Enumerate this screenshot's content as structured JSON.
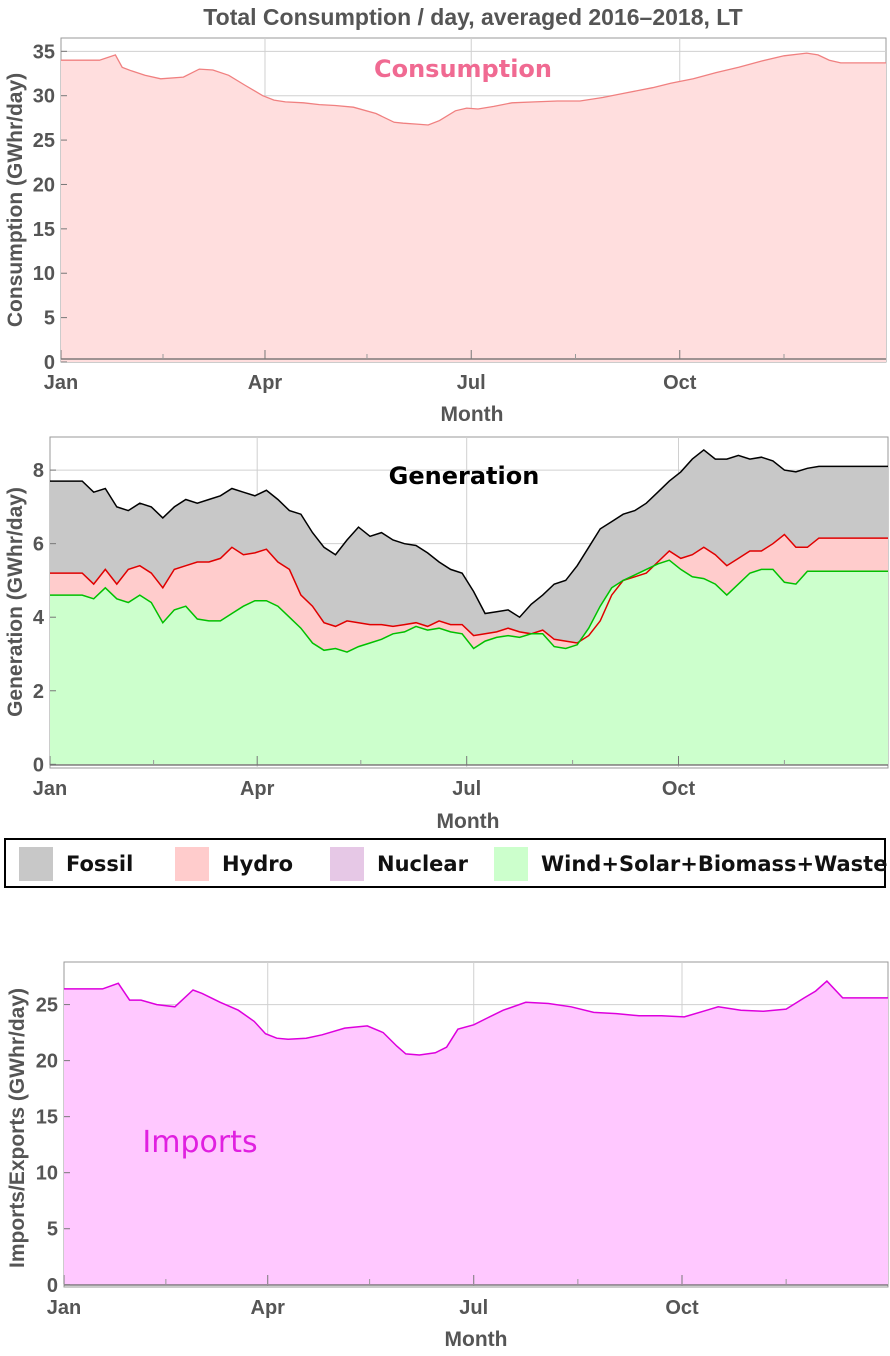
{
  "chart_data": [
    {
      "type": "area",
      "title": "Total Consumption / day, averaged 2016–2018, LT",
      "xlabel": "Month",
      "ylabel": "Consumption (GWhr/day)",
      "xticks": [
        "Jan",
        "Apr",
        "Jul",
        "Oct"
      ],
      "xlim": [
        1,
        365
      ],
      "ylim": [
        0,
        36.5
      ],
      "yticks": [
        0,
        5,
        10,
        15,
        20,
        25,
        30,
        35
      ],
      "grid": true,
      "annotation": "Consumption",
      "colors": {
        "line": "#f08080",
        "fill": "#ffdede",
        "annotation": "#f06a92"
      },
      "series": [
        {
          "values_x": [
            1,
            18,
            25,
            28,
            32,
            38,
            45,
            55,
            62,
            68,
            75,
            82,
            90,
            95,
            100,
            108,
            115,
            122,
            130,
            140,
            148,
            152,
            158,
            163,
            168,
            175,
            180,
            185,
            192,
            200,
            210,
            220,
            230,
            240,
            250,
            262,
            270,
            280,
            290,
            300,
            310,
            320,
            330,
            335,
            340,
            345,
            350,
            365
          ],
          "values_y": [
            34.0,
            34.0,
            34.6,
            33.2,
            32.8,
            32.3,
            31.9,
            32.1,
            33.0,
            32.9,
            32.3,
            31.2,
            30.0,
            29.5,
            29.3,
            29.2,
            29.0,
            28.9,
            28.7,
            28.0,
            27.0,
            26.9,
            26.8,
            26.7,
            27.2,
            28.3,
            28.6,
            28.5,
            28.8,
            29.2,
            29.3,
            29.4,
            29.4,
            29.8,
            30.3,
            30.9,
            31.4,
            31.9,
            32.6,
            33.2,
            33.9,
            34.5,
            34.8,
            34.6,
            34.0,
            33.7,
            33.7,
            33.7
          ]
        }
      ]
    },
    {
      "type": "area",
      "title": "Generation",
      "xlabel": "Month",
      "ylabel": "Generation (GWhr/day)",
      "xticks": [
        "Jan",
        "Apr",
        "Jul",
        "Oct"
      ],
      "xlim": [
        1,
        365
      ],
      "ylim": [
        -0.1,
        8.9
      ],
      "yticks": [
        0,
        2,
        4,
        6,
        8
      ],
      "grid": true,
      "stacked": true,
      "series": [
        {
          "name": "Fossil",
          "line": "#000000",
          "fill": "#c8c8c8",
          "values_x": [
            1,
            15,
            20,
            25,
            30,
            35,
            40,
            45,
            50,
            55,
            60,
            65,
            70,
            75,
            80,
            85,
            90,
            95,
            100,
            105,
            110,
            115,
            120,
            125,
            130,
            135,
            140,
            145,
            150,
            155,
            160,
            165,
            170,
            175,
            180,
            185,
            190,
            195,
            200,
            205,
            210,
            215,
            220,
            225,
            230,
            235,
            240,
            245,
            250,
            255,
            260,
            265,
            270,
            275,
            280,
            285,
            290,
            295,
            300,
            305,
            310,
            315,
            320,
            325,
            330,
            335,
            340,
            345,
            350,
            365
          ],
          "values_y": [
            7.7,
            7.7,
            7.4,
            7.5,
            7.0,
            6.9,
            7.1,
            7.0,
            6.7,
            7.0,
            7.2,
            7.1,
            7.2,
            7.3,
            7.5,
            7.4,
            7.3,
            7.45,
            7.2,
            6.9,
            6.8,
            6.3,
            5.9,
            5.7,
            6.1,
            6.45,
            6.2,
            6.3,
            6.1,
            6.0,
            5.95,
            5.75,
            5.5,
            5.3,
            5.2,
            4.7,
            4.1,
            4.15,
            4.2,
            4.0,
            4.35,
            4.6,
            4.9,
            5.0,
            5.4,
            5.9,
            6.4,
            6.6,
            6.8,
            6.9,
            7.1,
            7.4,
            7.7,
            7.95,
            8.3,
            8.55,
            8.3,
            8.3,
            8.4,
            8.3,
            8.35,
            8.25,
            8.0,
            7.95,
            8.05,
            8.1,
            8.1,
            8.1,
            8.1,
            8.1
          ]
        },
        {
          "name": "Hydro",
          "line": "#e00000",
          "fill": "#ffcccc",
          "values_x": [
            1,
            15,
            20,
            25,
            30,
            35,
            40,
            45,
            50,
            55,
            60,
            65,
            70,
            75,
            80,
            85,
            90,
            95,
            100,
            105,
            110,
            115,
            120,
            125,
            130,
            135,
            140,
            145,
            150,
            155,
            160,
            165,
            170,
            175,
            180,
            185,
            190,
            195,
            200,
            205,
            210,
            215,
            220,
            225,
            230,
            235,
            240,
            245,
            250,
            255,
            260,
            265,
            270,
            275,
            280,
            285,
            290,
            295,
            300,
            305,
            310,
            315,
            320,
            325,
            330,
            335,
            340,
            345,
            350,
            365
          ],
          "values_y": [
            5.2,
            5.2,
            4.9,
            5.3,
            4.9,
            5.3,
            5.4,
            5.2,
            4.8,
            5.3,
            5.4,
            5.5,
            5.5,
            5.6,
            5.9,
            5.7,
            5.75,
            5.85,
            5.5,
            5.3,
            4.6,
            4.3,
            3.85,
            3.75,
            3.9,
            3.85,
            3.8,
            3.8,
            3.75,
            3.8,
            3.85,
            3.75,
            3.9,
            3.8,
            3.8,
            3.5,
            3.55,
            3.6,
            3.7,
            3.6,
            3.55,
            3.65,
            3.4,
            3.35,
            3.3,
            3.5,
            3.9,
            4.6,
            5.0,
            5.1,
            5.2,
            5.5,
            5.8,
            5.6,
            5.7,
            5.9,
            5.7,
            5.4,
            5.6,
            5.8,
            5.8,
            6.0,
            6.25,
            5.9,
            5.9,
            6.15,
            6.15,
            6.15,
            6.15,
            6.15
          ]
        },
        {
          "name": "Wind+Solar+Biomass+Waste",
          "line": "#00c000",
          "fill": "#ccffcc",
          "values_x": [
            1,
            15,
            20,
            25,
            30,
            35,
            40,
            45,
            50,
            55,
            60,
            65,
            70,
            75,
            80,
            85,
            90,
            95,
            100,
            105,
            110,
            115,
            120,
            125,
            130,
            135,
            140,
            145,
            150,
            155,
            160,
            165,
            170,
            175,
            180,
            185,
            190,
            195,
            200,
            205,
            210,
            215,
            220,
            225,
            230,
            235,
            240,
            245,
            250,
            255,
            260,
            265,
            270,
            275,
            280,
            285,
            290,
            295,
            300,
            305,
            310,
            315,
            320,
            325,
            330,
            335,
            340,
            345,
            350,
            365
          ],
          "values_y": [
            4.6,
            4.6,
            4.5,
            4.8,
            4.5,
            4.4,
            4.6,
            4.4,
            3.85,
            4.2,
            4.3,
            3.95,
            3.9,
            3.9,
            4.1,
            4.3,
            4.45,
            4.45,
            4.3,
            4.0,
            3.7,
            3.3,
            3.1,
            3.15,
            3.05,
            3.2,
            3.3,
            3.4,
            3.55,
            3.6,
            3.75,
            3.65,
            3.7,
            3.6,
            3.55,
            3.15,
            3.35,
            3.45,
            3.5,
            3.45,
            3.55,
            3.55,
            3.2,
            3.15,
            3.25,
            3.7,
            4.3,
            4.8,
            5.0,
            5.15,
            5.3,
            5.45,
            5.55,
            5.3,
            5.1,
            5.05,
            4.9,
            4.6,
            4.9,
            5.2,
            5.3,
            5.3,
            4.95,
            4.9,
            5.25,
            5.25,
            5.25,
            5.25,
            5.25,
            5.25
          ]
        }
      ]
    },
    {
      "type": "area",
      "title": "",
      "xlabel": "Month",
      "ylabel": "Imports/Exports (GWhr/day)",
      "xticks": [
        "Jan",
        "Apr",
        "Jul",
        "Oct"
      ],
      "xlim": [
        1,
        365
      ],
      "ylim": [
        -0.2,
        28.8
      ],
      "yticks": [
        0,
        5,
        10,
        15,
        20,
        25
      ],
      "grid": true,
      "annotation": "Imports",
      "colors": {
        "line": "#dd00dd",
        "fill": "#ffc8ff",
        "annotation": "#e020e0"
      },
      "series": [
        {
          "values_x": [
            1,
            18,
            25,
            30,
            35,
            42,
            50,
            58,
            62,
            70,
            78,
            85,
            90,
            95,
            100,
            108,
            115,
            125,
            135,
            142,
            148,
            152,
            158,
            165,
            170,
            175,
            182,
            188,
            195,
            205,
            215,
            225,
            235,
            245,
            255,
            265,
            275,
            285,
            290,
            300,
            310,
            320,
            328,
            333,
            338,
            345,
            365
          ],
          "values_y": [
            26.4,
            26.4,
            26.9,
            25.4,
            25.4,
            25.0,
            24.8,
            26.3,
            26.0,
            25.2,
            24.5,
            23.5,
            22.4,
            22.0,
            21.9,
            22.0,
            22.3,
            22.9,
            23.1,
            22.5,
            21.3,
            20.6,
            20.5,
            20.7,
            21.2,
            22.8,
            23.2,
            23.8,
            24.5,
            25.2,
            25.1,
            24.8,
            24.3,
            24.2,
            24.0,
            24.0,
            23.9,
            24.5,
            24.8,
            24.5,
            24.4,
            24.6,
            25.6,
            26.2,
            27.1,
            25.6,
            25.6
          ]
        }
      ]
    }
  ],
  "legend": {
    "items": [
      {
        "label": "Fossil",
        "color": "#c8c8c8"
      },
      {
        "label": "Hydro",
        "color": "#ffcccc"
      },
      {
        "label": "Nuclear",
        "color": "#e6c8e6"
      },
      {
        "label": "Wind+Solar+Biomass+Waste",
        "color": "#ccffcc"
      }
    ]
  }
}
